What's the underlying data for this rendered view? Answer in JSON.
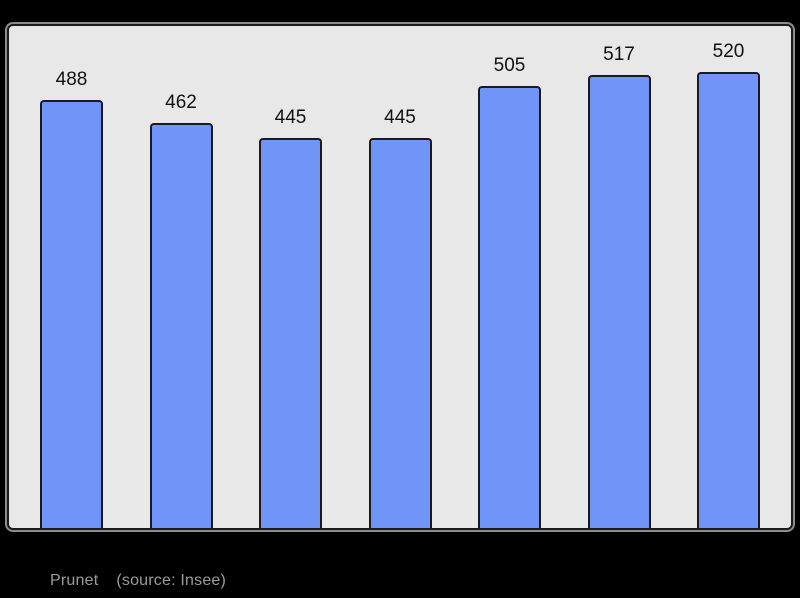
{
  "chart_data": {
    "type": "bar",
    "values": [
      488,
      462,
      445,
      445,
      505,
      517,
      520
    ],
    "bar_labels": [
      "488",
      "462",
      "445",
      "445",
      "505",
      "517",
      "520"
    ],
    "title": "",
    "xlabel": "",
    "ylabel": "",
    "ylim": [
      0,
      573
    ],
    "grid": false,
    "legend": false,
    "caption": {
      "place": "Prunet",
      "source": "(source: Insee)"
    },
    "colors": {
      "page_bg": "#000000",
      "panel_bg": "#e8e8e8",
      "bar_fill": "#7094f8",
      "bar_border": "#1b1b1b",
      "value_label": "#111111",
      "caption_text": "#9b9b9b"
    }
  }
}
